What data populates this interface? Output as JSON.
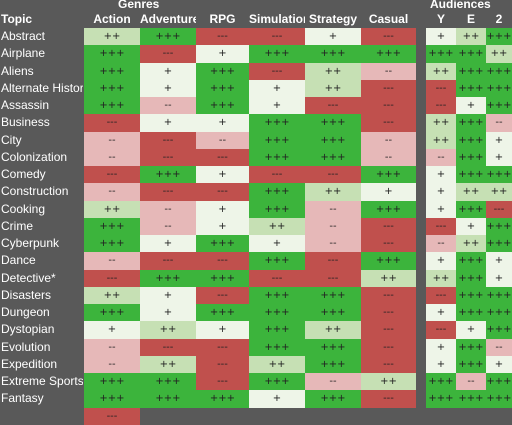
{
  "header": {
    "genres_label": "Genres",
    "audiences_label": "Audiences",
    "topic_label": "Topic"
  },
  "chart_data": {
    "type": "table",
    "genre_columns": [
      "Action",
      "Adventure",
      "RPG",
      "Simulation",
      "Strategy",
      "Casual"
    ],
    "audience_columns": [
      "Y",
      "E",
      "2"
    ],
    "colors": {
      "+++": "#3cb43c",
      "++": "#c6e0b4",
      "+": "#eef5e8",
      "--": "#e6b8b8",
      "---": "#c0504d"
    },
    "rows": [
      {
        "topic": "Abstract",
        "genres": [
          "++",
          "+++",
          "---",
          "---",
          "+",
          "---"
        ],
        "audiences": [
          "+",
          "++",
          "+++"
        ]
      },
      {
        "topic": "Airplane",
        "genres": [
          "+++",
          "---",
          "+",
          "+++",
          "+++",
          "+++"
        ],
        "audiences": [
          "+++",
          "+++",
          "++"
        ]
      },
      {
        "topic": "Aliens",
        "genres": [
          "+++",
          "+",
          "+++",
          "---",
          "++",
          "--"
        ],
        "audiences": [
          "++",
          "+++",
          "+++"
        ]
      },
      {
        "topic": "Alternate History",
        "genres": [
          "+++",
          "+",
          "+++",
          "+",
          "++",
          "---"
        ],
        "audiences": [
          "---",
          "+++",
          "+++"
        ]
      },
      {
        "topic": "Assassin",
        "genres": [
          "+++",
          "--",
          "+++",
          "+",
          "---",
          "---"
        ],
        "audiences": [
          "---",
          "+",
          "+++"
        ]
      },
      {
        "topic": "Business",
        "genres": [
          "---",
          "+",
          "+",
          "+++",
          "+++",
          "---"
        ],
        "audiences": [
          "++",
          "+++",
          "--"
        ]
      },
      {
        "topic": "City",
        "genres": [
          "--",
          "---",
          "--",
          "+++",
          "+++",
          "--"
        ],
        "audiences": [
          "++",
          "+++",
          "+"
        ]
      },
      {
        "topic": "Colonization",
        "genres": [
          "--",
          "---",
          "---",
          "+++",
          "+++",
          "--"
        ],
        "audiences": [
          "--",
          "+++",
          "+"
        ]
      },
      {
        "topic": "Comedy",
        "genres": [
          "---",
          "+++",
          "+",
          "---",
          "---",
          "+++"
        ],
        "audiences": [
          "+",
          "+++",
          "+++"
        ]
      },
      {
        "topic": "Construction",
        "genres": [
          "--",
          "---",
          "---",
          "+++",
          "++",
          "+"
        ],
        "audiences": [
          "+",
          "++",
          "++"
        ]
      },
      {
        "topic": "Cooking",
        "genres": [
          "++",
          "--",
          "+",
          "+++",
          "--",
          "+++"
        ],
        "audiences": [
          "+",
          "+++",
          "---"
        ]
      },
      {
        "topic": "Crime",
        "genres": [
          "+++",
          "--",
          "+",
          "++",
          "--",
          "---"
        ],
        "audiences": [
          "---",
          "+",
          "+++"
        ]
      },
      {
        "topic": "Cyberpunk",
        "genres": [
          "+++",
          "+",
          "+++",
          "+",
          "--",
          "---"
        ],
        "audiences": [
          "--",
          "++",
          "+++"
        ]
      },
      {
        "topic": "Dance",
        "genres": [
          "--",
          "---",
          "---",
          "+++",
          "---",
          "+++"
        ],
        "audiences": [
          "+",
          "+++",
          "+"
        ]
      },
      {
        "topic": "Detective*",
        "genres": [
          "---",
          "+++",
          "+++",
          "---",
          "---",
          "++"
        ],
        "audiences": [
          "++",
          "+++",
          "+"
        ]
      },
      {
        "topic": "Disasters",
        "genres": [
          "++",
          "+",
          "---",
          "+++",
          "+++",
          "---"
        ],
        "audiences": [
          "---",
          "+++",
          "+++"
        ]
      },
      {
        "topic": "Dungeon",
        "genres": [
          "+++",
          "+",
          "+++",
          "+++",
          "+++",
          "---"
        ],
        "audiences": [
          "+",
          "+++",
          "+++"
        ]
      },
      {
        "topic": "Dystopian",
        "genres": [
          "+",
          "++",
          "+",
          "+++",
          "++",
          "---"
        ],
        "audiences": [
          "---",
          "+",
          "+++"
        ]
      },
      {
        "topic": "Evolution",
        "genres": [
          "--",
          "---",
          "---",
          "+++",
          "+++",
          "---"
        ],
        "audiences": [
          "+",
          "+++",
          "--"
        ]
      },
      {
        "topic": "Expedition",
        "genres": [
          "--",
          "++",
          "---",
          "++",
          "+++",
          "---"
        ],
        "audiences": [
          "+",
          "+++",
          "+"
        ]
      },
      {
        "topic": "Extreme Sports",
        "genres": [
          "+++",
          "+++",
          "---",
          "+++",
          "--",
          "++"
        ],
        "audiences": [
          "+++",
          "--",
          "+++"
        ]
      },
      {
        "topic": "Fantasy",
        "genres": [
          "+++",
          "+++",
          "+++",
          "+",
          "+++",
          "---"
        ],
        "audiences": [
          "+++",
          "+++",
          "+++"
        ]
      },
      {
        "topic": "",
        "genres": [
          "---",
          "",
          "",
          "",
          "",
          ""
        ],
        "audiences": [
          "",
          "",
          ""
        ]
      }
    ]
  }
}
